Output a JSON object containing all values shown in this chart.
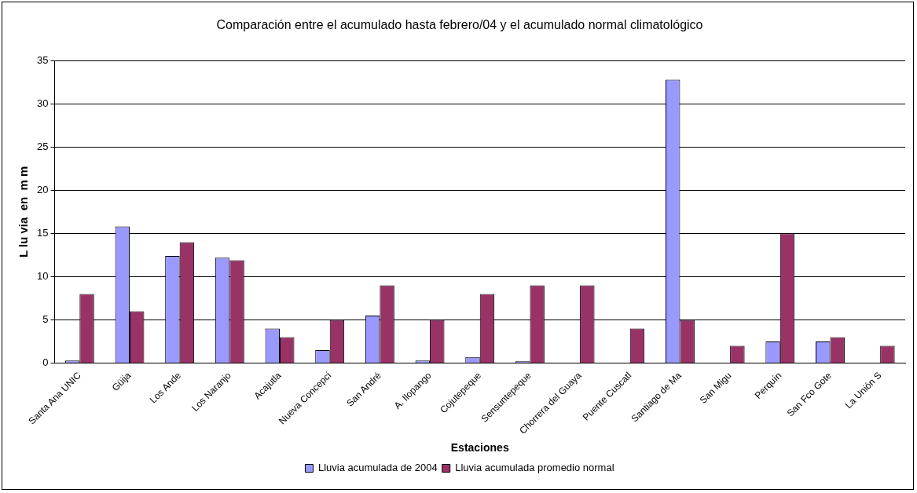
{
  "chart_data": {
    "type": "bar",
    "title": "Comparación entre el acumulado hasta febrero/04 y el acumulado normal climatológico",
    "xlabel": "Estaciones",
    "ylabel": "L lu via  en  m m",
    "categories": [
      "Santa Ana UNIC",
      "Güija",
      "Los Ande",
      "Los Naranjo",
      "Acajutla",
      "Nueva Concepci",
      "San André",
      "A. Ilopango",
      "Cojutepeque",
      "Sensuntepeque",
      "Chorrera del Guaya",
      "Puente Cuscatl",
      "Santiago de Ma",
      "San Migu",
      "Perquín",
      "San Fco Gote",
      "La Unión S"
    ],
    "series": [
      {
        "name": "Lluvia acumulada de 2004",
        "color": "#9999ff",
        "values": [
          0.3,
          15.8,
          12.4,
          12.2,
          4,
          1.5,
          5.5,
          0.3,
          0.7,
          0.2,
          0,
          0,
          32.8,
          0,
          2.5,
          2.5,
          0
        ]
      },
      {
        "name": "Lluvia acumulada promedio normal",
        "color": "#993366",
        "values": [
          8,
          6,
          14,
          11.9,
          3,
          5,
          9,
          5,
          8,
          9,
          9,
          4,
          5,
          2,
          15,
          3,
          2
        ]
      }
    ],
    "ylim": [
      0,
      35
    ],
    "yticks": [
      0,
      5,
      10,
      15,
      20,
      25,
      30,
      35
    ],
    "grid": "y",
    "legend": "bottom"
  }
}
